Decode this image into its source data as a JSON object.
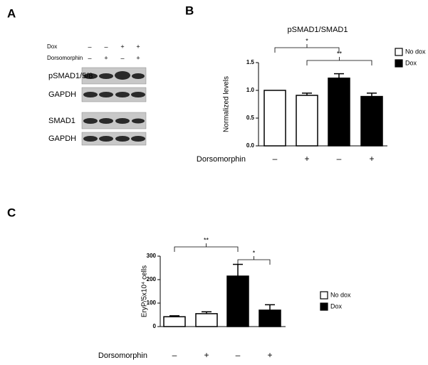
{
  "panels": [
    "A",
    "B",
    "C"
  ],
  "blot": {
    "conditions": [
      {
        "label": "Dox",
        "signs": [
          "–",
          "–",
          "+",
          "+"
        ]
      },
      {
        "label": "Dorsomorphin",
        "signs": [
          "–",
          "+",
          "–",
          "+"
        ]
      }
    ],
    "bands": [
      "pSMAD1/5/8",
      "GAPDH",
      "SMAD1",
      "GAPDH"
    ]
  },
  "chart_data": [
    {
      "type": "bar",
      "title": "pSMAD1/SMAD1",
      "ylabel": "Normalized levels",
      "xlabel": "Dorsomorphin",
      "categories": [
        "–",
        "+",
        "–",
        "+"
      ],
      "series": [
        {
          "name": "No dox",
          "color": "#ffffff",
          "values": [
            1.0,
            0.91,
            null,
            null
          ],
          "errors": [
            0,
            0.04,
            null,
            null
          ]
        },
        {
          "name": "Dox",
          "color": "#000000",
          "values": [
            null,
            null,
            1.22,
            0.89
          ],
          "errors": [
            null,
            null,
            0.08,
            0.06
          ]
        }
      ],
      "ylim": [
        0,
        1.5
      ],
      "yticks": [
        {
          "value": 0,
          "label": "0.0"
        },
        {
          "value": 0.5,
          "label": "0.5"
        },
        {
          "value": 1,
          "label": "1.0"
        },
        {
          "value": 1.5,
          "label": "1.5"
        }
      ],
      "brackets": [
        {
          "label": "*",
          "between": [
            0,
            2
          ]
        },
        {
          "label": "**",
          "between": [
            1,
            3
          ]
        }
      ]
    },
    {
      "type": "bar",
      "ylabel": "EryP/5x10⁴ cells",
      "xlabel": "Dorsomorphin",
      "categories": [
        "–",
        "+",
        "–",
        "+"
      ],
      "series": [
        {
          "name": "No dox",
          "color": "#ffffff",
          "values": [
            42,
            55,
            null,
            null
          ],
          "errors": [
            4,
            8,
            null,
            null
          ]
        },
        {
          "name": "Dox",
          "color": "#000000",
          "values": [
            null,
            null,
            215,
            70
          ],
          "errors": [
            null,
            null,
            50,
            23
          ]
        }
      ],
      "ylim": [
        0,
        300
      ],
      "yticks": [
        0,
        100,
        200,
        300
      ],
      "brackets": [
        {
          "label": "**",
          "between": [
            0,
            2
          ]
        },
        {
          "label": "*",
          "between": [
            2,
            3
          ]
        }
      ]
    }
  ]
}
